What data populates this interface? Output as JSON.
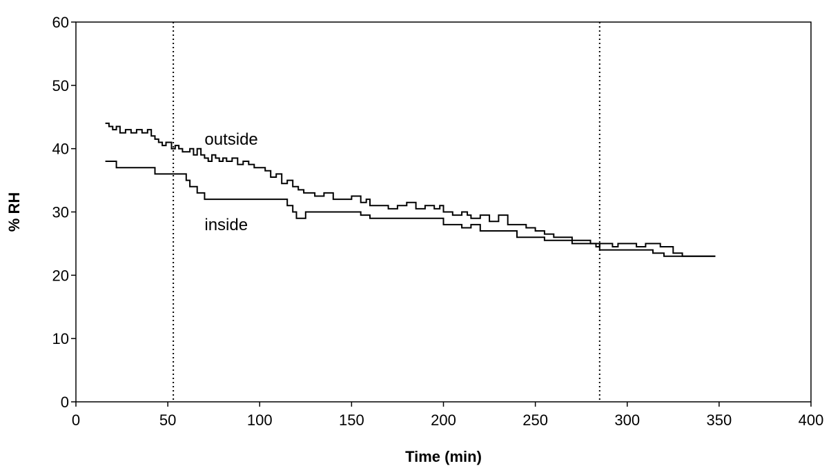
{
  "chart_data": {
    "type": "line",
    "title": "",
    "xlabel": "Time (min)",
    "ylabel": "% RH",
    "xlim": [
      0,
      400
    ],
    "ylim": [
      0,
      60
    ],
    "xticks": [
      0,
      50,
      100,
      150,
      200,
      250,
      300,
      350,
      400
    ],
    "yticks": [
      0,
      10,
      20,
      30,
      40,
      50,
      60
    ],
    "grid": false,
    "legend": "inline labels",
    "vlines": [
      53,
      285
    ],
    "series": [
      {
        "name": "outside",
        "label_at": [
          70,
          41.5
        ],
        "x": [
          16,
          18,
          20,
          22,
          24,
          27,
          30,
          33,
          36,
          39,
          41,
          43,
          45,
          47,
          49,
          52,
          54,
          56,
          58,
          60,
          62,
          64,
          66,
          68,
          70,
          72,
          74,
          76,
          78,
          80,
          82,
          85,
          88,
          91,
          94,
          97,
          100,
          103,
          106,
          109,
          112,
          115,
          118,
          121,
          124,
          127,
          130,
          135,
          140,
          145,
          150,
          155,
          158,
          160,
          165,
          170,
          175,
          180,
          185,
          190,
          195,
          198,
          200,
          205,
          210,
          213,
          215,
          220,
          225,
          230,
          235,
          240,
          245,
          250,
          255,
          260,
          265,
          270,
          275,
          280,
          283,
          285,
          288,
          292,
          295,
          300,
          305,
          310,
          315,
          318,
          320,
          325,
          328,
          330,
          335,
          340,
          345,
          348
        ],
        "values": [
          44,
          43.5,
          43,
          43.5,
          42.5,
          43,
          42.5,
          43,
          42.5,
          43,
          42,
          41.5,
          41,
          40.5,
          41,
          40,
          40.5,
          40,
          39.5,
          39.5,
          40,
          39,
          40,
          39,
          38.5,
          38,
          39,
          38.5,
          38,
          38.5,
          38,
          38.5,
          37.5,
          38,
          37.5,
          37,
          37,
          36.5,
          35.5,
          36,
          34.5,
          35,
          34,
          33.5,
          33,
          33,
          32.5,
          33,
          32,
          32,
          32.5,
          31.5,
          32,
          31,
          31,
          30.5,
          31,
          31.5,
          30.5,
          31,
          30.5,
          31,
          30,
          29.5,
          30,
          29.5,
          29,
          29.5,
          28.5,
          29.5,
          28,
          28,
          27.5,
          27,
          26.5,
          26,
          26,
          25.5,
          25.5,
          25,
          24.5,
          25,
          25,
          24.5,
          25,
          25,
          24.5,
          25,
          25,
          24.5,
          24.5,
          23.5,
          23.5,
          23,
          23,
          23,
          23,
          23
        ]
      },
      {
        "name": "inside",
        "label_at": [
          70,
          28
        ],
        "x": [
          16,
          20,
          22,
          25,
          30,
          35,
          40,
          43,
          45,
          47,
          50,
          53,
          55,
          57,
          60,
          62,
          64,
          66,
          68,
          70,
          72,
          75,
          80,
          85,
          90,
          95,
          100,
          105,
          110,
          115,
          118,
          120,
          122,
          125,
          130,
          140,
          150,
          155,
          160,
          170,
          180,
          190,
          195,
          200,
          205,
          210,
          215,
          220,
          225,
          230,
          240,
          250,
          255,
          260,
          270,
          280,
          285,
          290,
          300,
          310,
          314,
          320,
          330,
          335,
          340,
          345,
          348
        ],
        "values": [
          38,
          38,
          37,
          37,
          37,
          37,
          37,
          36,
          36,
          36,
          36,
          36,
          36,
          36,
          35,
          34,
          34,
          33,
          33,
          32,
          32,
          32,
          32,
          32,
          32,
          32,
          32,
          32,
          32,
          31,
          30,
          29,
          29,
          30,
          30,
          30,
          30,
          29.5,
          29,
          29,
          29,
          29,
          29,
          28,
          28,
          27.5,
          28,
          27,
          27,
          27,
          26,
          26,
          25.5,
          25.5,
          25,
          25,
          24,
          24,
          24,
          24,
          23.5,
          23,
          23,
          23,
          23,
          23,
          23
        ]
      }
    ]
  }
}
